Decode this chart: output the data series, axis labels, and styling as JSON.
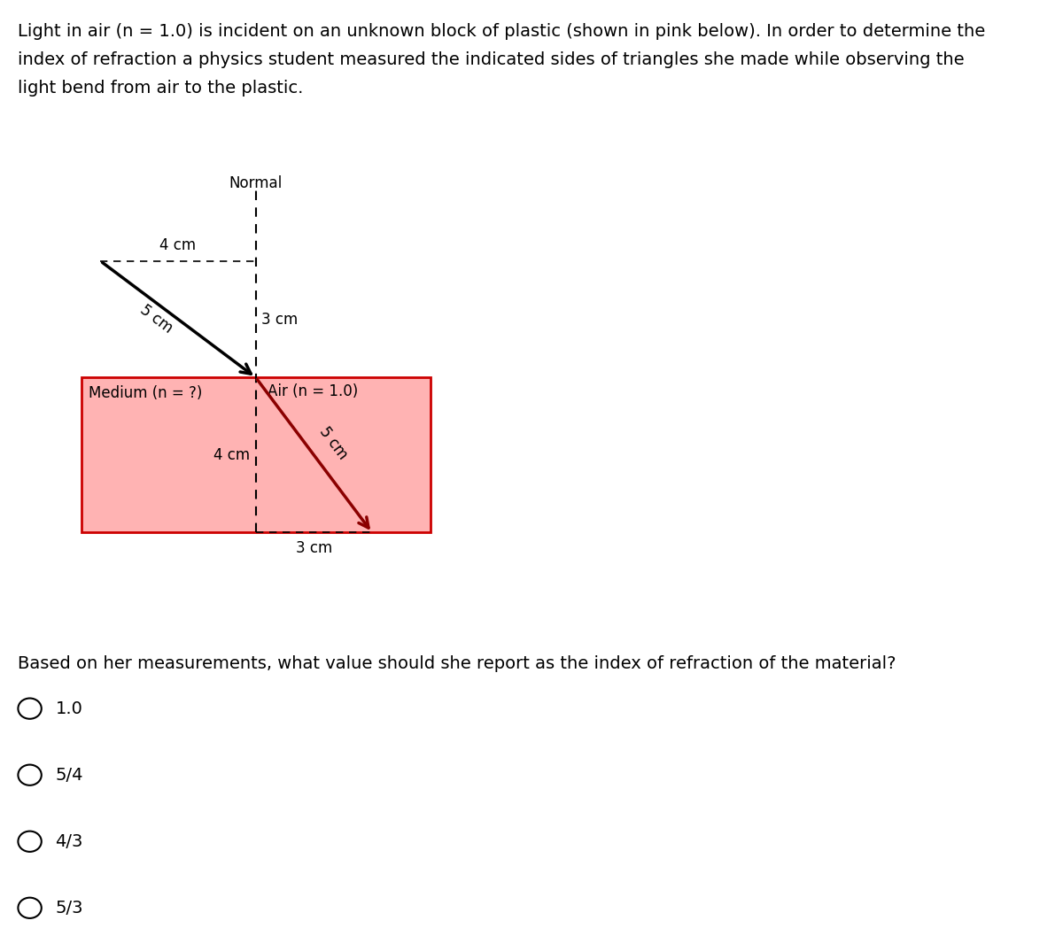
{
  "title_line1": "Light in air (n = 1.0) is incident on an unknown block of plastic (shown in pink below). In order to determine the",
  "title_line2": "index of refraction a physics student measured the indicated sides of triangles she made while observing the",
  "title_line3": "light bend from air to the plastic.",
  "question_text": "Based on her measurements, what value should she report as the index of refraction of the material?",
  "choices": [
    "1.0",
    "5/4",
    "4/3",
    "5/3"
  ],
  "pink_color": "#FFB3B3",
  "pink_edge_color": "#CC0000",
  "normal_label": "Normal",
  "air_label": "Air (n = 1.0)",
  "medium_label": "Medium (n = ?)",
  "incident_label": "5 cm",
  "incident_horiz": "4 cm",
  "incident_vert": "3 cm",
  "refracted_label": "5 cm",
  "refracted_horiz": "3 cm",
  "refracted_vert": "4 cm",
  "bg_color": "#ffffff"
}
